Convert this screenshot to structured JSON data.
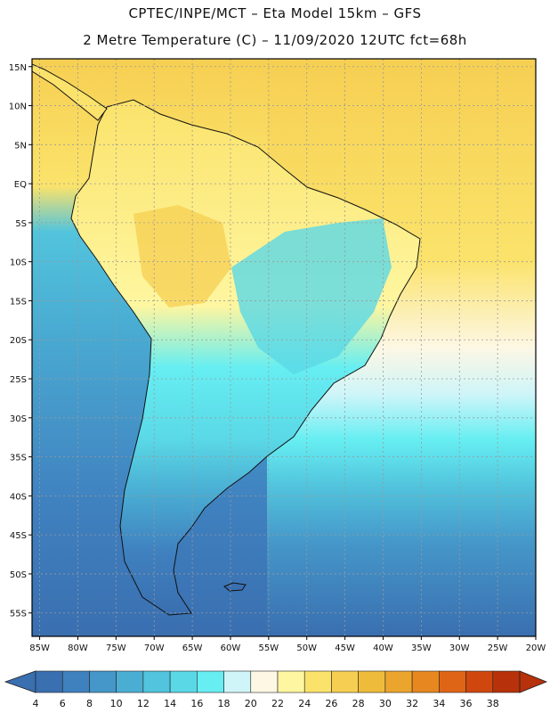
{
  "header": {
    "title_line1": "CPTEC/INPE/MCT –  Eta Model 15km – GFS",
    "title_line2": "2 Metre Temperature (C) – 11/09/2020 12UTC fct=68h"
  },
  "map": {
    "lat_labels": [
      "15N",
      "10N",
      "5N",
      "EQ",
      "5S",
      "10S",
      "15S",
      "20S",
      "25S",
      "30S",
      "35S",
      "40S",
      "45S",
      "50S",
      "55S"
    ],
    "lon_labels": [
      "85W",
      "80W",
      "75W",
      "70W",
      "65W",
      "60W",
      "55W",
      "50W",
      "45W",
      "40W",
      "35W",
      "30W",
      "25W",
      "20W"
    ],
    "lat_range": [
      -58,
      16
    ],
    "lon_range": [
      -86,
      -20
    ],
    "grid": true
  },
  "colorbar": {
    "labels": [
      "4",
      "6",
      "8",
      "10",
      "12",
      "14",
      "16",
      "18",
      "20",
      "22",
      "24",
      "26",
      "28",
      "30",
      "32",
      "34",
      "36",
      "38"
    ],
    "colors": [
      "#3a6fb0",
      "#3f80bf",
      "#4596c9",
      "#4aaed3",
      "#52c4dd",
      "#5ad8e6",
      "#66eef2",
      "#cff5f9",
      "#fdf7e4",
      "#fef6a0",
      "#fbe36b",
      "#f6cf52",
      "#efbb3b",
      "#eba52d",
      "#e6881f",
      "#df6516",
      "#cf470f",
      "#b7310a"
    ],
    "under_color": "#3a6fb0",
    "over_color": "#b7310a"
  },
  "colors": {
    "land_warm": "#fbe36b",
    "land_cool": "#66eef2",
    "ocean_tropical": "#f6cf52",
    "ocean_cold": "#3f80bf",
    "border": "#111111"
  }
}
